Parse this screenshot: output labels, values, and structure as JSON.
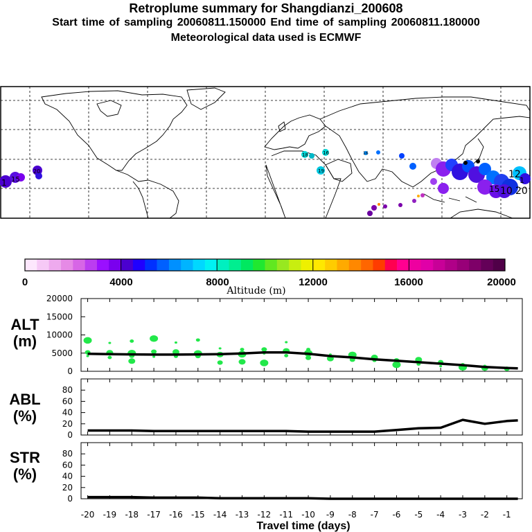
{
  "header": {
    "title": "Retroplume summary for Shangdianzi_200608",
    "line2": "Start time of sampling 20060811.150000     End time of sampling 20060811.180000",
    "line3": "Meteorological data used is ECMWF"
  },
  "map": {
    "plume_labels": [
      "1",
      "15",
      "20",
      "18",
      "16",
      "19",
      "16",
      "12",
      "20",
      "1",
      "10",
      "15"
    ]
  },
  "colorbar": {
    "tick_labels": [
      "0",
      "4000",
      "8000",
      "12000",
      "16000",
      "20000"
    ],
    "label": "Altitude (m)",
    "colors": [
      "#fde7fd",
      "#f6c9f6",
      "#eeaaee",
      "#e68ae6",
      "#d766e6",
      "#bb3df0",
      "#9a10ff",
      "#7a00ee",
      "#4b00d0",
      "#2000ff",
      "#0030ff",
      "#0060ff",
      "#0090ff",
      "#00b4ff",
      "#00d8ff",
      "#00f2f2",
      "#00f0c0",
      "#00ee90",
      "#00e860",
      "#20e830",
      "#60e820",
      "#98e820",
      "#c8ee10",
      "#eef000",
      "#ffe800",
      "#ffcc00",
      "#ffaa00",
      "#ff8800",
      "#ff6600",
      "#ff3c00",
      "#ff0050",
      "#ff0090",
      "#ee00a0",
      "#e000a8",
      "#c80098",
      "#b00088",
      "#980078",
      "#7e0068",
      "#640058",
      "#500048"
    ]
  },
  "chart_data": [
    {
      "type": "line",
      "panel": "ALT",
      "ylabel": "ALT\n(m)",
      "ylabel_lines": [
        "ALT",
        "(m)"
      ],
      "ylim": [
        0,
        20000
      ],
      "yticks": [
        "0",
        "5000",
        "10000",
        "15000",
        "20000"
      ],
      "x": [
        -20,
        -19,
        -18,
        -17,
        -16,
        -15,
        -14,
        -13,
        -12,
        -11,
        -10,
        -9,
        -8,
        -7,
        -6,
        -5,
        -4,
        -3,
        -2,
        -1,
        -0.5
      ],
      "series": [
        {
          "name": "mean altitude",
          "values": [
            4800,
            4700,
            4650,
            4600,
            4600,
            4650,
            4700,
            4900,
            5200,
            5200,
            4800,
            4200,
            3800,
            3300,
            2900,
            2500,
            2100,
            1700,
            1200,
            900,
            800
          ]
        }
      ],
      "scatter": {
        "color": "#22e84a",
        "points": [
          [
            -20,
            4200
          ],
          [
            -20,
            5200
          ],
          [
            -20,
            8500
          ],
          [
            -19,
            3800
          ],
          [
            -19,
            5100
          ],
          [
            -19,
            7800
          ],
          [
            -18,
            4300
          ],
          [
            -18,
            5000
          ],
          [
            -18,
            8300
          ],
          [
            -18,
            2800
          ],
          [
            -17,
            4000
          ],
          [
            -17,
            5400
          ],
          [
            -17,
            9000
          ],
          [
            -16,
            4100
          ],
          [
            -16,
            5300
          ],
          [
            -16,
            7900
          ],
          [
            -15,
            4200
          ],
          [
            -15,
            4900
          ],
          [
            -15,
            8600
          ],
          [
            -14,
            4600
          ],
          [
            -14,
            6300
          ],
          [
            -14,
            2400
          ],
          [
            -13,
            4700
          ],
          [
            -13,
            6000
          ],
          [
            -13,
            2600
          ],
          [
            -12,
            4900
          ],
          [
            -12,
            6000
          ],
          [
            -12,
            2300
          ],
          [
            -11,
            4300
          ],
          [
            -11,
            5600
          ],
          [
            -11,
            8000
          ],
          [
            -10,
            3700
          ],
          [
            -10,
            5000
          ],
          [
            -10,
            6000
          ],
          [
            -9,
            3500
          ],
          [
            -9,
            4600
          ],
          [
            -8,
            3200
          ],
          [
            -8,
            4500
          ],
          [
            -7,
            3000
          ],
          [
            -7,
            3800
          ],
          [
            -6,
            2200
          ],
          [
            -6,
            3000
          ],
          [
            -6,
            1800
          ],
          [
            -5,
            2000
          ],
          [
            -5,
            3200
          ],
          [
            -4,
            1400
          ],
          [
            -4,
            2500
          ],
          [
            -3,
            1100
          ],
          [
            -3,
            1800
          ],
          [
            -2,
            900
          ],
          [
            -2,
            1500
          ],
          [
            -1,
            700
          ]
        ]
      }
    },
    {
      "type": "line",
      "panel": "ABL",
      "ylabel": "ABL\n(%)",
      "ylabel_lines": [
        "ABL",
        "(%)"
      ],
      "ylim": [
        0,
        100
      ],
      "yticks": [
        "0",
        "20",
        "40",
        "60",
        "80"
      ],
      "x": [
        -20,
        -19,
        -18,
        -17,
        -16,
        -15,
        -14,
        -13,
        -12,
        -11,
        -10,
        -9,
        -8,
        -7,
        -6,
        -5,
        -4,
        -3,
        -2,
        -1,
        -0.5
      ],
      "series": [
        {
          "name": "ABL fraction",
          "values": [
            8,
            8,
            8,
            7,
            7,
            7,
            7,
            7,
            7,
            7,
            6,
            6,
            6,
            6,
            9,
            12,
            13,
            27,
            20,
            25,
            26
          ]
        }
      ]
    },
    {
      "type": "line",
      "panel": "STR",
      "ylabel": "STR\n(%)",
      "ylabel_lines": [
        "STR",
        "(%)"
      ],
      "ylim": [
        0,
        100
      ],
      "yticks": [
        "0",
        "20",
        "40",
        "60",
        "80"
      ],
      "x": [
        -20,
        -19,
        -18,
        -17,
        -16,
        -15,
        -14,
        -13,
        -12,
        -11,
        -10,
        -9,
        -8,
        -7,
        -6,
        -5,
        -4,
        -3,
        -2,
        -1,
        -0.5
      ],
      "series": [
        {
          "name": "stratospheric fraction",
          "values": [
            3,
            3,
            3,
            2,
            2,
            2,
            1,
            1,
            1,
            1,
            1,
            0,
            0,
            0,
            0,
            0,
            0,
            0,
            0,
            0,
            0
          ]
        }
      ]
    }
  ],
  "xaxis": {
    "ticks": [
      "-20",
      "-19",
      "-18",
      "-17",
      "-16",
      "-15",
      "-14",
      "-13",
      "-12",
      "-11",
      "-10",
      "-9",
      "-8",
      "-7",
      "-6",
      "-5",
      "-4",
      "-3",
      "-2",
      "-1"
    ],
    "label": "Travel time (days)"
  }
}
